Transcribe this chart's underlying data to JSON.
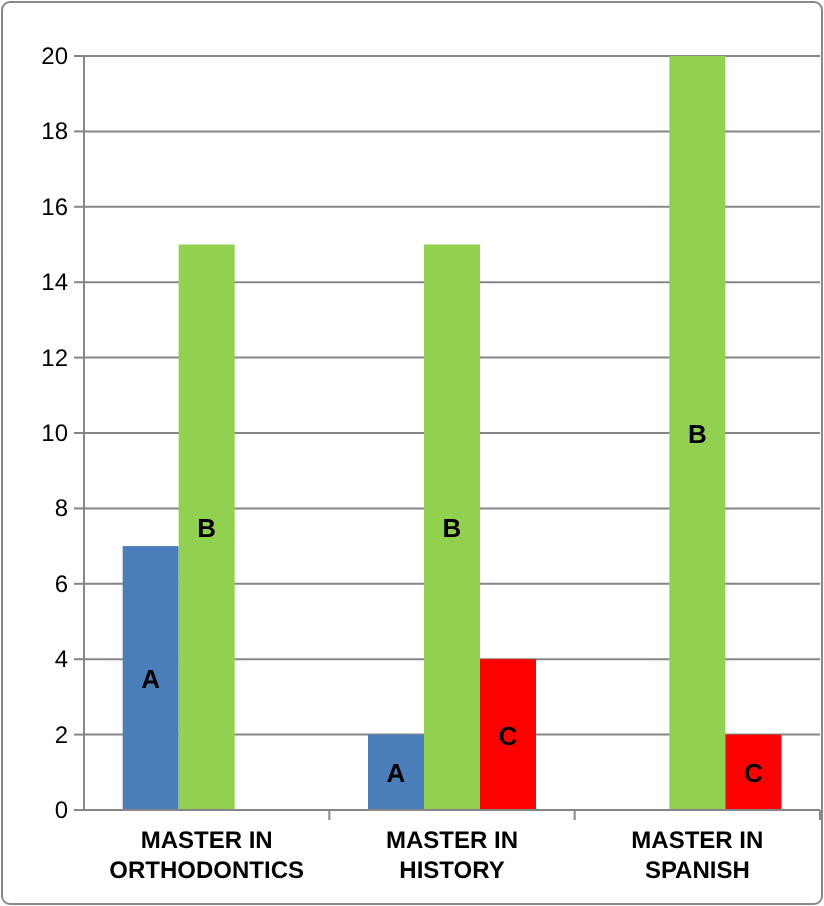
{
  "chart_data": {
    "type": "bar",
    "categories": [
      "MASTER IN ORTHODONTICS",
      "MASTER IN HISTORY",
      "MASTER IN SPANISH"
    ],
    "series": [
      {
        "name": "A",
        "color": "#4a7ebb",
        "values": [
          7,
          2,
          null
        ]
      },
      {
        "name": "B",
        "color": "#92d050",
        "values": [
          15,
          15,
          20
        ]
      },
      {
        "name": "C",
        "color": "#ff0000",
        "values": [
          null,
          4,
          2
        ]
      }
    ],
    "ylim": [
      0,
      20
    ],
    "yticks": [
      0,
      2,
      4,
      6,
      8,
      10,
      12,
      14,
      16,
      18,
      20
    ],
    "grid": "y"
  }
}
